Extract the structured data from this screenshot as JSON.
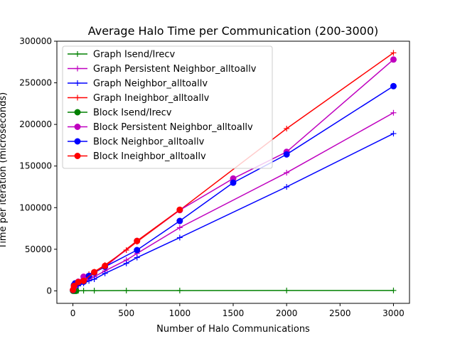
{
  "chart_data": {
    "type": "line",
    "title": "Average Halo Time per Communication (200-3000)",
    "xlabel": "Number of Halo Communications",
    "ylabel": "Time per iteration (microseconds)",
    "xlim": [
      -150,
      3150
    ],
    "ylim": [
      -15000,
      300000
    ],
    "xticks": [
      0,
      500,
      1000,
      1500,
      2000,
      2500,
      3000
    ],
    "yticks": [
      0,
      50000,
      100000,
      150000,
      200000,
      250000,
      300000
    ],
    "legend_position": "upper-left",
    "series": [
      {
        "name": "Graph Isend/Irecv",
        "color": "#008000",
        "marker": "plus",
        "x": [
          1,
          5,
          10,
          20,
          50,
          100,
          200,
          500,
          1000,
          2000,
          3000
        ],
        "y": [
          100,
          100,
          100,
          150,
          200,
          250,
          300,
          350,
          400,
          450,
          500
        ]
      },
      {
        "name": "Graph Persistent Neighbor_alltoallv",
        "color": "#bf00bf",
        "marker": "plus",
        "x": [
          1,
          5,
          10,
          20,
          50,
          100,
          150,
          200,
          300,
          500,
          600,
          1000,
          2000,
          3000
        ],
        "y": [
          1000,
          2000,
          3000,
          4500,
          8000,
          11000,
          14000,
          17000,
          24000,
          37000,
          45000,
          76000,
          142000,
          214000
        ]
      },
      {
        "name": "Graph Neighbor_alltoallv",
        "color": "#0000ff",
        "marker": "plus",
        "x": [
          1,
          5,
          10,
          20,
          50,
          100,
          150,
          200,
          300,
          500,
          600,
          1000,
          2000,
          3000
        ],
        "y": [
          800,
          1500,
          2500,
          3500,
          6000,
          9000,
          12000,
          14000,
          21000,
          33000,
          40000,
          64000,
          125000,
          189000
        ]
      },
      {
        "name": "Graph Ineighbor_alltoallv",
        "color": "#ff0000",
        "marker": "plus",
        "x": [
          1,
          5,
          10,
          20,
          50,
          100,
          150,
          200,
          300,
          500,
          600,
          1000,
          2000,
          3000
        ],
        "y": [
          1500,
          3000,
          4500,
          6000,
          10000,
          16000,
          20000,
          23000,
          31000,
          49000,
          59000,
          97000,
          195000,
          286000
        ]
      },
      {
        "name": "Block Isend/Irecv",
        "color": "#008000",
        "marker": "circle",
        "x": [
          1,
          10,
          20,
          30
        ],
        "y": [
          50,
          50,
          50,
          50
        ]
      },
      {
        "name": "Block Persistent Neighbor_alltoallv",
        "color": "#bf00bf",
        "marker": "circle",
        "x": [
          1,
          10,
          50,
          100,
          200,
          300,
          600,
          1000,
          1500,
          2000,
          3000
        ],
        "y": [
          1000,
          5000,
          11000,
          17000,
          22000,
          29000,
          60000,
          97000,
          135000,
          167000,
          278000
        ]
      },
      {
        "name": "Block Neighbor_alltoallv",
        "color": "#0000ff",
        "marker": "circle",
        "x": [
          1,
          10,
          20,
          50,
          100,
          150,
          200,
          300,
          600,
          1000,
          1500,
          2000,
          3000
        ],
        "y": [
          1000,
          7000,
          9000,
          10000,
          11000,
          18000,
          22000,
          29000,
          49000,
          84000,
          130000,
          164000,
          246000
        ]
      },
      {
        "name": "Block Ineighbor_alltoallv",
        "color": "#ff0000",
        "marker": "circle",
        "x": [
          1,
          10,
          50,
          100,
          200,
          300,
          600,
          1000
        ],
        "y": [
          1200,
          6000,
          10500,
          12000,
          22500,
          30000,
          60000,
          97500
        ]
      }
    ]
  }
}
